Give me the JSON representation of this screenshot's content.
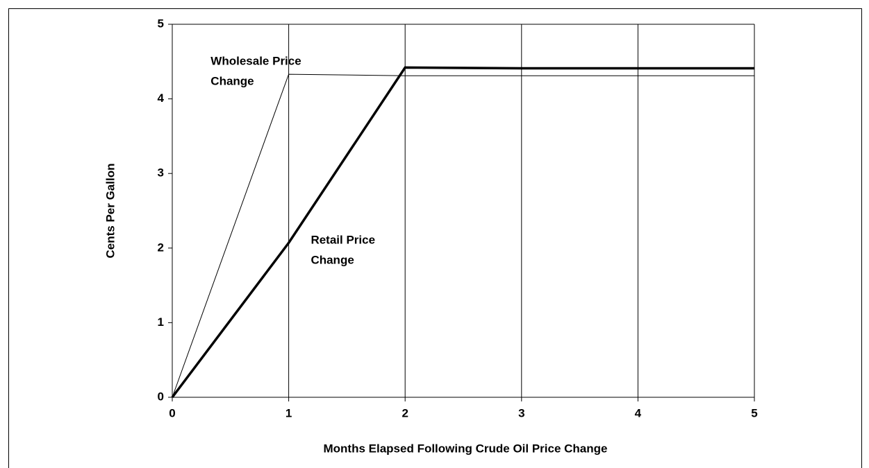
{
  "chart_data": {
    "type": "line",
    "x_label": "Months Elapsed Following Crude Oil Price Change",
    "y_label": "Cents Per Gallon",
    "x": [
      0,
      1,
      2,
      3,
      4,
      5
    ],
    "series": [
      {
        "color": "#000000",
        "width": 1,
        "values": [
          0,
          4.33,
          4.31,
          4.31,
          4.31,
          4.31
        ]
      },
      {
        "color": "#000000",
        "width": 3.5,
        "values": [
          0,
          2.07,
          4.42,
          4.41,
          4.41,
          4.41
        ]
      }
    ],
    "annotations": [
      {
        "lines": [
          "Wholesale Price",
          "Change"
        ],
        "x": 0.33,
        "y": 4.5
      },
      {
        "lines": [
          "Retail Price",
          "Change"
        ],
        "x": 1.19,
        "y": 2.1
      }
    ],
    "xlim": [
      0,
      5
    ],
    "ylim": [
      0,
      5
    ],
    "xticks": [
      0,
      1,
      2,
      3,
      4,
      5
    ],
    "yticks": [
      0,
      1,
      2,
      3,
      4,
      5
    ],
    "vertical_grid": true
  }
}
